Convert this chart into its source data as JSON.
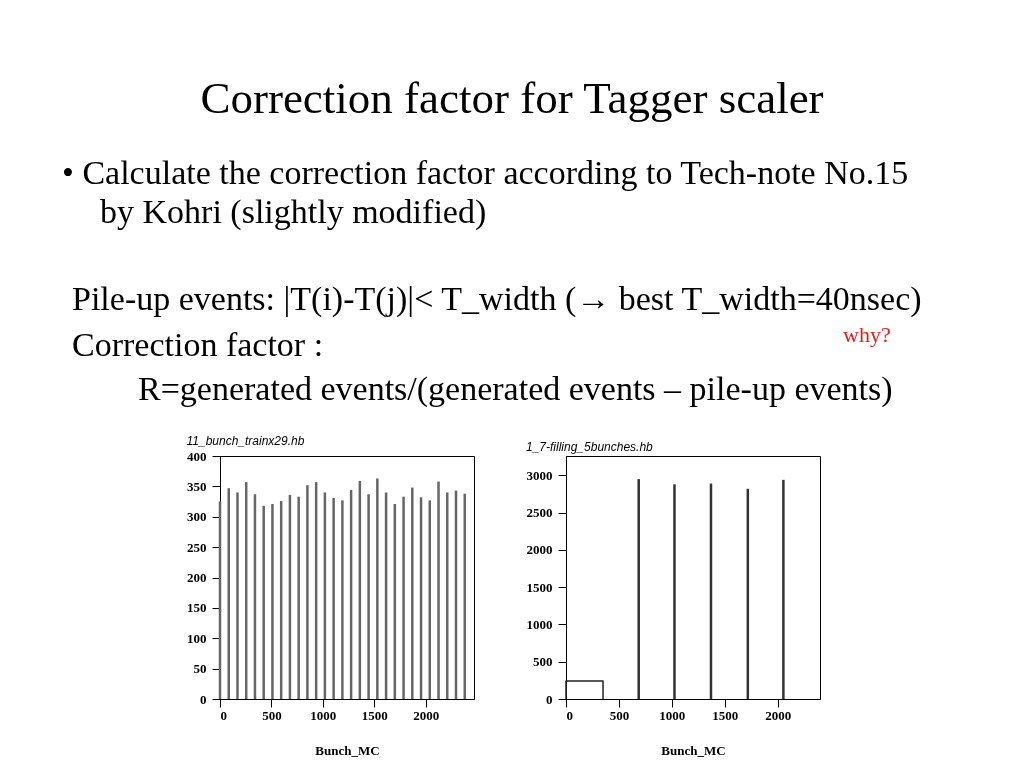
{
  "chart_data": [
    {
      "type": "bar",
      "title": "Correction factor for Tagger scaler",
      "subtitle": "11_bunch_trainx29.hb",
      "xlabel": "Bunch_MC",
      "annotations": [
        "• Calculate the correction factor according to Tech-note No.15 by Kohri   (slightly modified)",
        "Pile-up events:  |T(i)-T(j)|< T_width (→ best T_width=40nsec)",
        "why?",
        "Correction factor :",
        "R=generated events/(generated events – pile-up events)"
      ],
      "xlim": [
        0,
        2470
      ],
      "xticks": [
        0,
        500,
        1000,
        1500,
        2000
      ],
      "ylim": [
        0,
        400
      ],
      "yticks": [
        0,
        50,
        100,
        150,
        200,
        250,
        300,
        350,
        400
      ],
      "series": [
        {
          "color": "#666666",
          "x": [
            0,
            85,
            170,
            255,
            340,
            425,
            510,
            595,
            680,
            765,
            850,
            935,
            1020,
            1105,
            1190,
            1275,
            1360,
            1445,
            1530,
            1615,
            1700,
            1785,
            1870,
            1955,
            2040,
            2125,
            2210,
            2295,
            2380
          ],
          "values": [
            325,
            347,
            340,
            357,
            337,
            318,
            321,
            326,
            336,
            333,
            352,
            357,
            340,
            331,
            327,
            344,
            359,
            337,
            363,
            340,
            321,
            333,
            348,
            332,
            327,
            358,
            340,
            343,
            338
          ]
        }
      ]
    },
    {
      "type": "bar",
      "title": "1_7-filling_5bunches.hb",
      "xlabel": "Bunch_MC",
      "xlim": [
        0,
        2400
      ],
      "xticks": [
        0,
        500,
        1000,
        1500,
        2000
      ],
      "ylim": [
        0,
        3260
      ],
      "yticks": [
        0,
        500,
        1000,
        1500,
        2000,
        2500,
        3000
      ],
      "series": [
        {
          "type": "step",
          "color": "#222222",
          "x": [
            0,
            0,
            350,
            350
          ],
          "values": [
            0,
            240,
            240,
            0
          ]
        },
        {
          "color": "#333333",
          "x": [
            687,
            1025,
            1370,
            1718,
            2054
          ],
          "values": [
            2950,
            2880,
            2890,
            2820,
            2940
          ]
        }
      ]
    }
  ]
}
